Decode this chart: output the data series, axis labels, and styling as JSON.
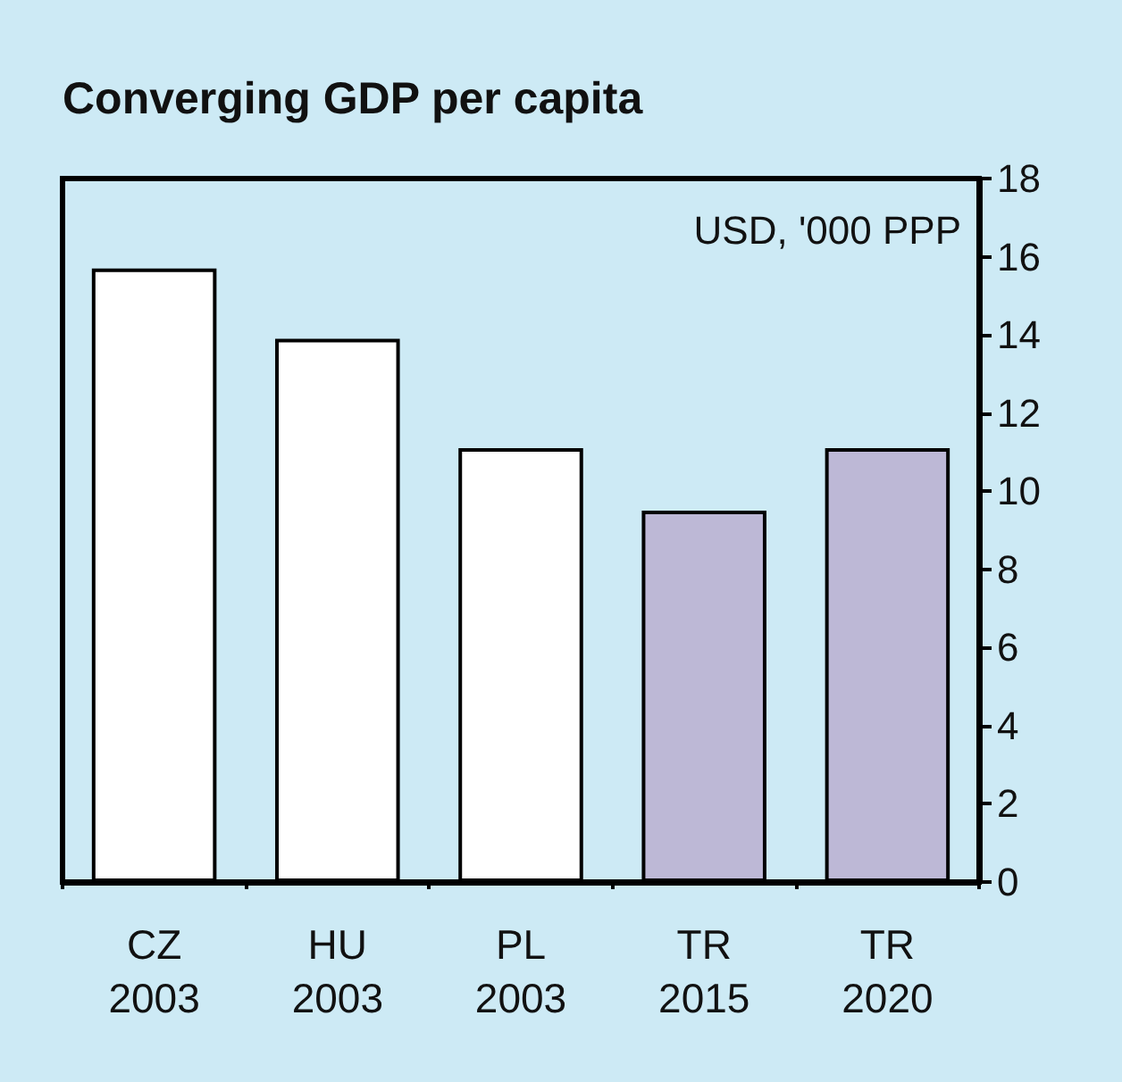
{
  "chart_data": {
    "type": "bar",
    "title": "Converging GDP per capita",
    "categories": [
      "CZ\n2003",
      "HU\n2003",
      "PL\n2003",
      "TR\n2015",
      "TR\n2020"
    ],
    "values": [
      15.7,
      13.9,
      11.1,
      9.5,
      11.1
    ],
    "colors": [
      "#ffffff",
      "#ffffff",
      "#ffffff",
      "#bdb8d6",
      "#bdb8d6"
    ],
    "ylim": [
      0,
      18
    ],
    "yticks": [
      0,
      2,
      4,
      6,
      8,
      10,
      12,
      14,
      16,
      18
    ],
    "grid": false,
    "annotations": [
      "USD, '000 PPP"
    ]
  }
}
